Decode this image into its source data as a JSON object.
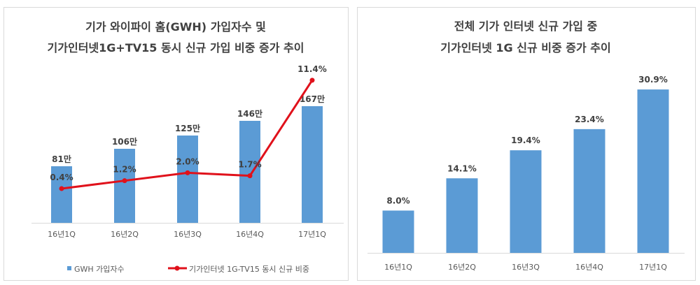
{
  "colors": {
    "bar": "#5b9bd5",
    "line": "#e0111b",
    "axis": "#d9d9d9",
    "text": "#404040"
  },
  "chart_data": [
    {
      "type": "bar+line",
      "title": [
        "기가 와이파이 홈(GWH) 가입자수 및",
        "기가인터넷1G+TV15 동시 신규 가입 비중 증가 추이"
      ],
      "categories": [
        "16년1Q",
        "16년2Q",
        "16년3Q",
        "16년4Q",
        "17년1Q"
      ],
      "series": [
        {
          "name": "GWH 가입자수",
          "kind": "bar",
          "unit": "만",
          "values": [
            81,
            106,
            125,
            146,
            167
          ],
          "labels": [
            "81만",
            "106만",
            "125만",
            "146만",
            "167만"
          ]
        },
        {
          "name": "기가인터넷 1G-TV15 동시 신규 비중",
          "kind": "line",
          "unit": "%",
          "values": [
            0.4,
            1.2,
            2.0,
            1.7,
            11.4
          ],
          "labels": [
            "0.4%",
            "1.2%",
            "2.0%",
            "1.7%",
            "11.4%"
          ]
        }
      ],
      "legend": "bottom"
    },
    {
      "type": "bar",
      "title": [
        "전체 기가 인터넷 신규 가입 중",
        "기가인터넷 1G 신규 비중 증가 추이"
      ],
      "categories": [
        "16년1Q",
        "16년2Q",
        "16년3Q",
        "16년4Q",
        "17년1Q"
      ],
      "values": [
        8.0,
        14.1,
        19.4,
        23.4,
        30.9
      ],
      "labels": [
        "8.0%",
        "14.1%",
        "19.4%",
        "23.4%",
        "30.9%"
      ],
      "unit": "%"
    }
  ]
}
